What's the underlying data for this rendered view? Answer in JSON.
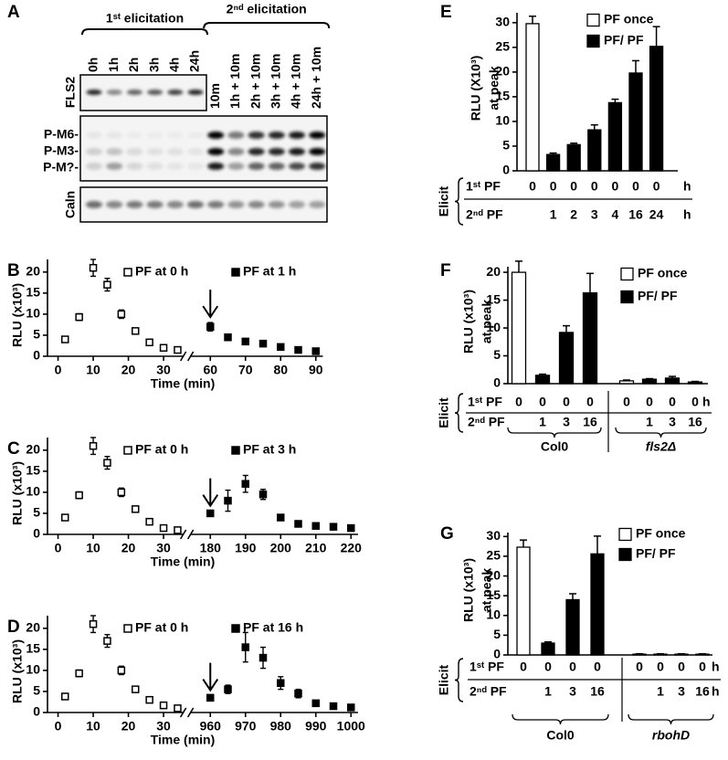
{
  "blot": {
    "panel": "A",
    "groups": [
      {
        "label": "1ˢᵗ elicitation",
        "lanes": [
          "0h",
          "1h",
          "2h",
          "3h",
          "4h",
          "24h"
        ]
      },
      {
        "label": "2ⁿᵈ elicitation",
        "lanes": [
          "10m",
          "1h + 10m",
          "2h + 10m",
          "3h + 10m",
          "4h + 10m",
          "24h + 10m"
        ]
      }
    ],
    "rows": [
      "FLS2",
      "P-M6-",
      "P-M3-",
      "P-M?-",
      "Caln"
    ]
  },
  "chart_data": [
    {
      "panel": "B",
      "type": "scatter",
      "ylabel": "RLU (x10³)",
      "xlabel": "Time (min)",
      "xlim": [
        -3,
        92
      ],
      "xticks": [
        0,
        10,
        20,
        30,
        60,
        70,
        80,
        90
      ],
      "ylim": [
        0,
        23
      ],
      "yticks": [
        0,
        5,
        10,
        15,
        20
      ],
      "axis_break": true,
      "arrow": true,
      "series": [
        {
          "name": "PF at 0 h",
          "marker": "open",
          "color": "#000000",
          "x": [
            2,
            6,
            10,
            14,
            18,
            22,
            26,
            30,
            34
          ],
          "values": [
            4,
            9.3,
            21,
            17,
            10,
            6,
            3.3,
            2,
            1.5
          ],
          "errors": [
            0.5,
            0.8,
            2,
            1.5,
            1,
            0.4,
            0.3,
            0.2,
            0.2
          ]
        },
        {
          "name": "PF at 1 h",
          "marker": "filled",
          "color": "#000000",
          "x": [
            60,
            65,
            70,
            75,
            80,
            85,
            90
          ],
          "values": [
            7,
            4.5,
            3.5,
            3,
            2.2,
            1.5,
            1.2
          ],
          "errors": [
            1,
            0.5,
            0.3,
            0.3,
            0.2,
            0.2,
            0.2
          ]
        }
      ]
    },
    {
      "panel": "C",
      "type": "scatter",
      "ylabel": "RLU (x10³)",
      "xlabel": "Time (min)",
      "xlim": [
        -3,
        222
      ],
      "xticks": [
        0,
        10,
        20,
        30,
        180,
        190,
        200,
        210,
        220
      ],
      "ylim": [
        0,
        23
      ],
      "yticks": [
        0,
        5,
        10,
        15,
        20
      ],
      "axis_break": true,
      "arrow": true,
      "series": [
        {
          "name": "PF at 0 h",
          "marker": "open",
          "color": "#000000",
          "x": [
            2,
            6,
            10,
            14,
            18,
            22,
            26,
            30,
            34
          ],
          "values": [
            4,
            9.3,
            21,
            17,
            10,
            6,
            3,
            1.5,
            1
          ],
          "errors": [
            0.5,
            0.8,
            2,
            1.5,
            1,
            0.4,
            0.3,
            0.2,
            0.2
          ]
        },
        {
          "name": "PF at 3 h",
          "marker": "filled",
          "color": "#000000",
          "x": [
            180,
            185,
            190,
            195,
            200,
            205,
            210,
            215,
            220
          ],
          "values": [
            5,
            8,
            12,
            9.5,
            4,
            2.5,
            2,
            1.8,
            1.5
          ],
          "errors": [
            0.5,
            2.5,
            2,
            1.2,
            0.4,
            0.3,
            0.2,
            0.2,
            0.2
          ]
        }
      ]
    },
    {
      "panel": "D",
      "type": "scatter",
      "ylabel": "RLU (x10³)",
      "xlabel": "Time (min)",
      "xlim": [
        -3,
        1002
      ],
      "xticks": [
        0,
        10,
        20,
        30,
        960,
        970,
        980,
        990,
        1000
      ],
      "ylim": [
        0,
        23
      ],
      "yticks": [
        0,
        5,
        10,
        15,
        20
      ],
      "axis_break": true,
      "arrow": true,
      "series": [
        {
          "name": "PF at 0 h",
          "marker": "open",
          "color": "#000000",
          "x": [
            2,
            6,
            10,
            14,
            18,
            22,
            26,
            30,
            34
          ],
          "values": [
            3.8,
            9.3,
            21,
            17,
            10,
            5.5,
            3,
            1.7,
            1
          ],
          "errors": [
            0.5,
            0.8,
            2,
            1.5,
            1,
            0.4,
            0.3,
            0.2,
            0.2
          ]
        },
        {
          "name": "PF at 16 h",
          "marker": "filled",
          "color": "#000000",
          "x": [
            960,
            965,
            970,
            975,
            980,
            985,
            990,
            995,
            1000
          ],
          "values": [
            3.5,
            5.5,
            15.5,
            13,
            7,
            4.5,
            2.2,
            1.5,
            1.2
          ],
          "errors": [
            0.5,
            1,
            3.5,
            2.5,
            1.5,
            1,
            0.4,
            0.3,
            0.3
          ]
        }
      ]
    },
    {
      "panel": "E",
      "type": "bar",
      "ylabel": [
        "RLU (X10³)",
        "at peak"
      ],
      "ylim": [
        0,
        32
      ],
      "yticks": [
        0,
        5,
        10,
        15,
        20,
        25,
        30
      ],
      "series": [
        {
          "name": "PF once",
          "color": "#ffffff",
          "values": [
            29.8,
            null,
            null,
            null,
            null,
            null,
            null
          ],
          "errors": [
            1.5,
            null,
            null,
            null,
            null,
            null,
            null
          ]
        },
        {
          "name": "PF/ PF",
          "color": "#000000",
          "values": [
            null,
            3.3,
            5.3,
            8.3,
            13.8,
            19.8,
            25.2
          ],
          "errors": [
            null,
            0.3,
            0.3,
            1,
            0.7,
            2.5,
            4
          ]
        }
      ],
      "elicit": {
        "label": "Elicit",
        "rows": [
          {
            "label": "1ˢᵗ PF",
            "cells": [
              "0",
              "0",
              "0",
              "0",
              "0",
              "0",
              "0"
            ],
            "unit": "h"
          },
          {
            "label": "2ⁿᵈ PF",
            "cells": [
              null,
              "1",
              "2",
              "3",
              "4",
              "16",
              "24"
            ],
            "unit": "h"
          }
        ]
      }
    },
    {
      "panel": "F",
      "type": "bar",
      "ylabel": [
        "RLU (x10³)",
        "at peak"
      ],
      "ylim": [
        0,
        21
      ],
      "yticks": [
        0,
        5,
        10,
        15,
        20
      ],
      "series": [
        {
          "name": "PF once",
          "color": "#ffffff",
          "values": [
            20,
            null,
            null,
            null,
            0.5,
            null,
            null,
            null
          ],
          "errors": [
            2,
            null,
            null,
            null,
            0.15,
            null,
            null,
            null
          ]
        },
        {
          "name": "PF/ PF",
          "color": "#000000",
          "values": [
            null,
            1.5,
            9.2,
            16.3,
            null,
            0.8,
            1,
            0.3
          ],
          "errors": [
            null,
            0.2,
            1.2,
            3.5,
            null,
            0.1,
            0.3,
            0.1
          ]
        }
      ],
      "elicit": {
        "label": "Elicit",
        "rows": [
          {
            "label": "1ˢᵗ PF",
            "cells": [
              "0",
              "0",
              "0",
              "0",
              "0",
              "0",
              "0",
              "0"
            ],
            "unit": "h"
          },
          {
            "label": "2ⁿᵈ PF",
            "cells": [
              null,
              "1",
              "3",
              "16",
              null,
              "1",
              "3",
              "16"
            ]
          }
        ],
        "groups": [
          {
            "label": "Col0",
            "italic": false
          },
          {
            "label": "fls2Δ",
            "italic": true
          }
        ]
      }
    },
    {
      "panel": "G",
      "type": "bar",
      "ylabel": [
        "RLU (x10³)",
        "at peak"
      ],
      "ylim": [
        0,
        31
      ],
      "yticks": [
        0,
        5,
        10,
        15,
        20,
        25,
        30
      ],
      "series": [
        {
          "name": "PF once",
          "color": "#ffffff",
          "values": [
            27.3,
            null,
            null,
            null,
            0.2,
            null,
            null,
            null
          ],
          "errors": [
            1.8,
            null,
            null,
            null,
            0.1,
            null,
            null,
            null
          ]
        },
        {
          "name": "PF/ PF",
          "color": "#000000",
          "values": [
            null,
            3,
            14,
            25.6,
            null,
            0.2,
            0.2,
            0.2
          ],
          "errors": [
            null,
            0.3,
            1.5,
            4.5,
            null,
            0.1,
            0.1,
            0.1
          ]
        }
      ],
      "elicit": {
        "label": "Elicit",
        "rows": [
          {
            "label": "1ˢᵗ PF",
            "cells": [
              "0",
              "0",
              "0",
              "0",
              "0",
              "0",
              "0",
              "0"
            ],
            "unit": "h"
          },
          {
            "label": "2ⁿᵈ PF",
            "cells": [
              null,
              "1",
              "3",
              "16",
              null,
              "1",
              "3",
              "16"
            ],
            "unit": "h"
          }
        ],
        "groups": [
          {
            "label": "Col0",
            "italic": false
          },
          {
            "label": "rbohD",
            "italic": true
          }
        ]
      }
    }
  ]
}
